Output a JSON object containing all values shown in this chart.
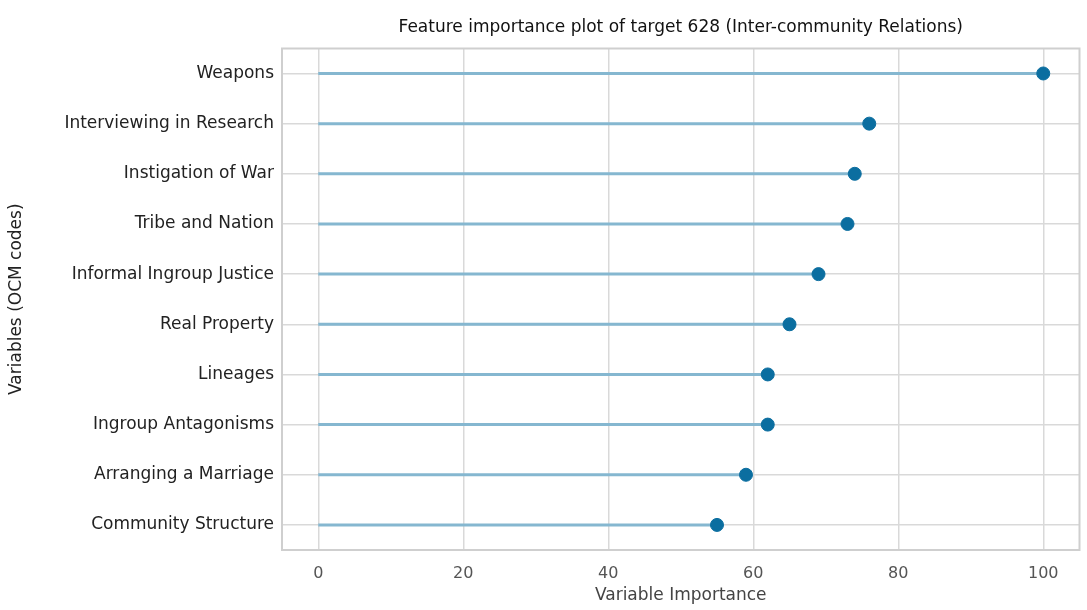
{
  "chart_data": {
    "type": "lollipop",
    "title": "Feature importance plot of target 628 (Inter-community Relations)",
    "xlabel": "Variable Importance",
    "ylabel": "Variables (OCM codes)",
    "orientation": "horizontal",
    "categories": [
      "Weapons",
      "Interviewing in Research",
      "Instigation of War",
      "Tribe and Nation",
      "Informal Ingroup Justice",
      "Real Property",
      "Lineages",
      "Ingroup Antagonisms",
      "Arranging a Marriage",
      "Community Structure"
    ],
    "values": [
      100,
      76,
      74,
      73,
      69,
      65,
      62,
      62,
      59,
      55
    ],
    "color": "#0b6ea0",
    "xlim": [
      -5,
      105
    ],
    "xticks": [
      0,
      20,
      40,
      60,
      80,
      100
    ],
    "grid": true,
    "marker": "circle"
  }
}
